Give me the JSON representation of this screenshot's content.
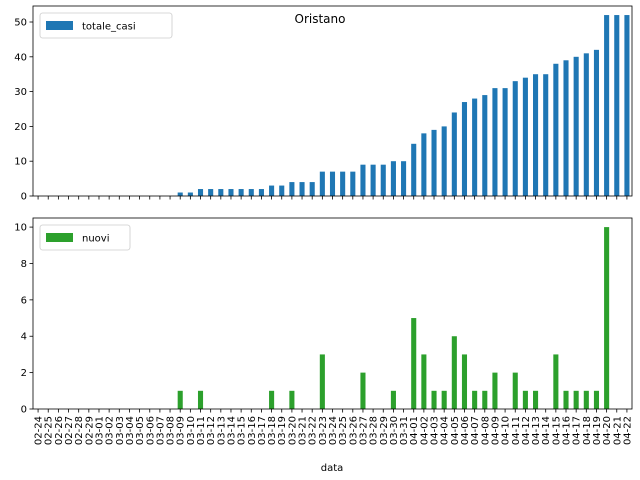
{
  "chart_data": {
    "type": "bar",
    "title": "Oristano",
    "xlabel": "data",
    "categories": [
      "02-24",
      "02-25",
      "02-26",
      "02-27",
      "02-28",
      "02-29",
      "03-01",
      "03-02",
      "03-03",
      "03-04",
      "03-05",
      "03-06",
      "03-07",
      "03-08",
      "03-09",
      "03-10",
      "03-11",
      "03-12",
      "03-13",
      "03-14",
      "03-15",
      "03-16",
      "03-17",
      "03-18",
      "03-19",
      "03-20",
      "03-21",
      "03-22",
      "03-23",
      "03-24",
      "03-25",
      "03-26",
      "03-27",
      "03-28",
      "03-29",
      "03-30",
      "03-31",
      "04-01",
      "04-02",
      "04-03",
      "04-04",
      "04-05",
      "04-06",
      "04-07",
      "04-08",
      "04-09",
      "04-10",
      "04-11",
      "04-12",
      "04-13",
      "04-14",
      "04-15",
      "04-16",
      "04-17",
      "04-18",
      "04-19",
      "04-20",
      "04-21",
      "04-22"
    ],
    "panels": [
      {
        "series": [
          {
            "name": "totale_casi",
            "color": "#1f77b4",
            "values": [
              0,
              0,
              0,
              0,
              0,
              0,
              0,
              0,
              0,
              0,
              0,
              0,
              0,
              0,
              1,
              1,
              2,
              2,
              2,
              2,
              2,
              2,
              2,
              3,
              3,
              4,
              4,
              4,
              7,
              7,
              7,
              7,
              9,
              9,
              9,
              10,
              10,
              15,
              18,
              19,
              20,
              24,
              27,
              28,
              29,
              31,
              31,
              33,
              34,
              35,
              35,
              38,
              39,
              40,
              41,
              42,
              52,
              52,
              52
            ]
          }
        ],
        "ylim": [
          0,
          54.6
        ],
        "yticks": [
          0,
          10,
          20,
          30,
          40,
          50
        ],
        "legend": "upper-left",
        "grid": false
      },
      {
        "series": [
          {
            "name": "nuovi",
            "color": "#2ca02c",
            "values": [
              0,
              0,
              0,
              0,
              0,
              0,
              0,
              0,
              0,
              0,
              0,
              0,
              0,
              0,
              1,
              0,
              1,
              0,
              0,
              0,
              0,
              0,
              0,
              1,
              0,
              1,
              0,
              0,
              3,
              0,
              0,
              0,
              2,
              0,
              0,
              1,
              0,
              5,
              3,
              1,
              1,
              4,
              3,
              1,
              1,
              2,
              0,
              2,
              1,
              1,
              0,
              3,
              1,
              1,
              1,
              1,
              10,
              0,
              0
            ]
          }
        ],
        "ylim": [
          0,
          10.5
        ],
        "yticks": [
          0,
          2,
          4,
          6,
          8,
          10
        ],
        "legend": "upper-left",
        "grid": false
      }
    ]
  }
}
